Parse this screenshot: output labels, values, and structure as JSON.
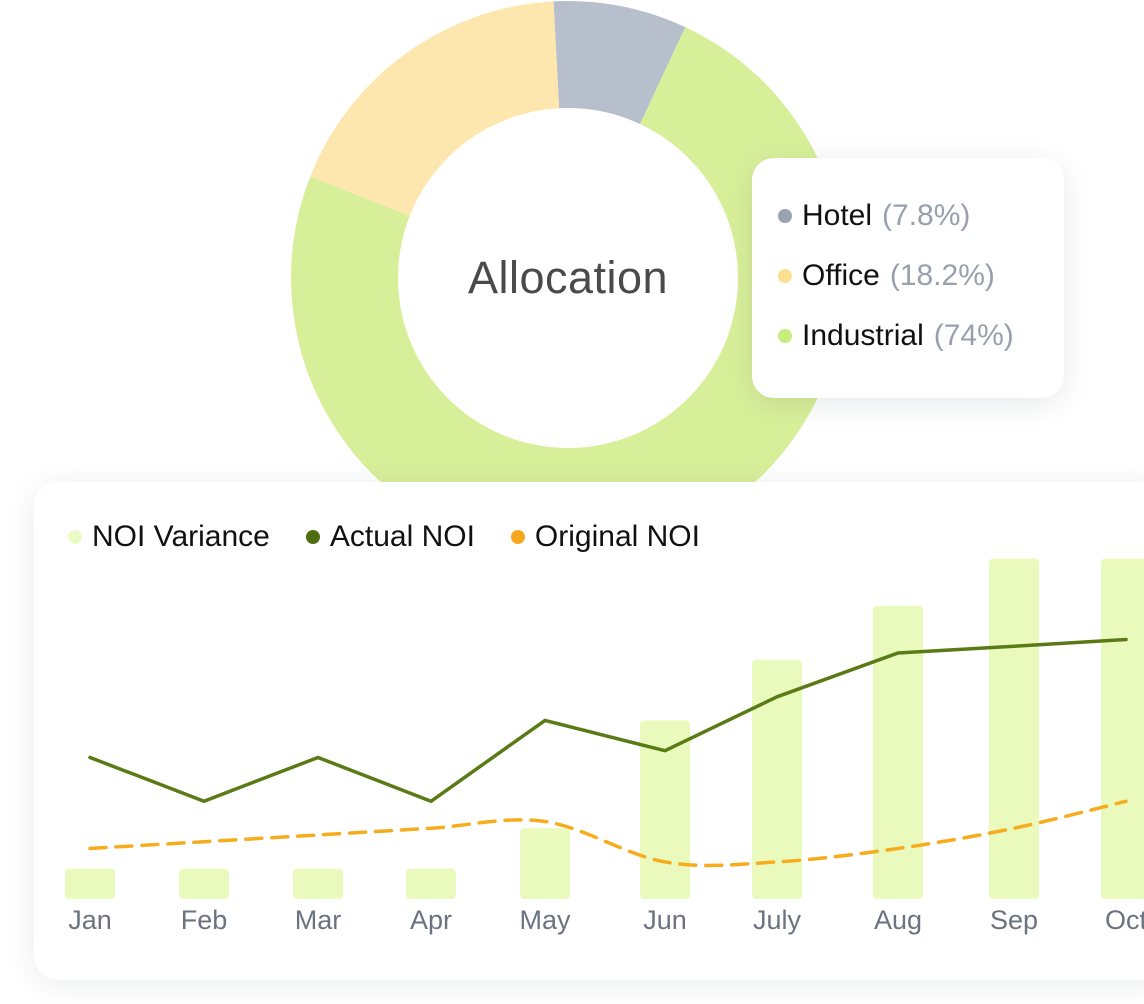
{
  "chart_data": [
    {
      "type": "pie",
      "title": "Allocation",
      "slices": [
        {
          "name": "Hotel",
          "value": 7.8,
          "label": "(7.8%)",
          "color": "#b8bfcc",
          "dot_color": "#9aa1b0"
        },
        {
          "name": "Office",
          "value": 18.2,
          "label": "(18.2%)",
          "color": "#fde7ae",
          "dot_color": "#fde08f"
        },
        {
          "name": "Industrial",
          "value": 74,
          "label": "(74%)",
          "color": "#d8ef9a",
          "dot_color": "#c8ec7e"
        }
      ]
    },
    {
      "type": "bar",
      "categories": [
        "Jan",
        "Feb",
        "Mar",
        "Apr",
        "May",
        "Jun",
        "July",
        "Aug",
        "Sep",
        "Oct"
      ],
      "ylim": [
        0,
        100
      ],
      "series": [
        {
          "name": "NOI Variance",
          "kind": "bar",
          "color": "#eafabc",
          "dot_color": "#ebfbc6",
          "values": [
            9,
            9,
            9,
            9,
            21,
            53,
            71,
            87,
            101,
            101
          ]
        },
        {
          "name": "Actual NOI",
          "kind": "line",
          "color": "#5a7a15",
          "dot_color": "#4e6e10",
          "values": [
            42,
            29,
            42,
            29,
            53,
            44,
            60,
            73,
            75,
            77
          ]
        },
        {
          "name": "Original NOI",
          "kind": "dashed-line",
          "color": "#f6ac1c",
          "dot_color": "#f5a81f",
          "values": [
            15,
            17,
            19,
            21,
            23,
            11,
            11,
            15,
            21,
            29
          ]
        }
      ]
    }
  ]
}
